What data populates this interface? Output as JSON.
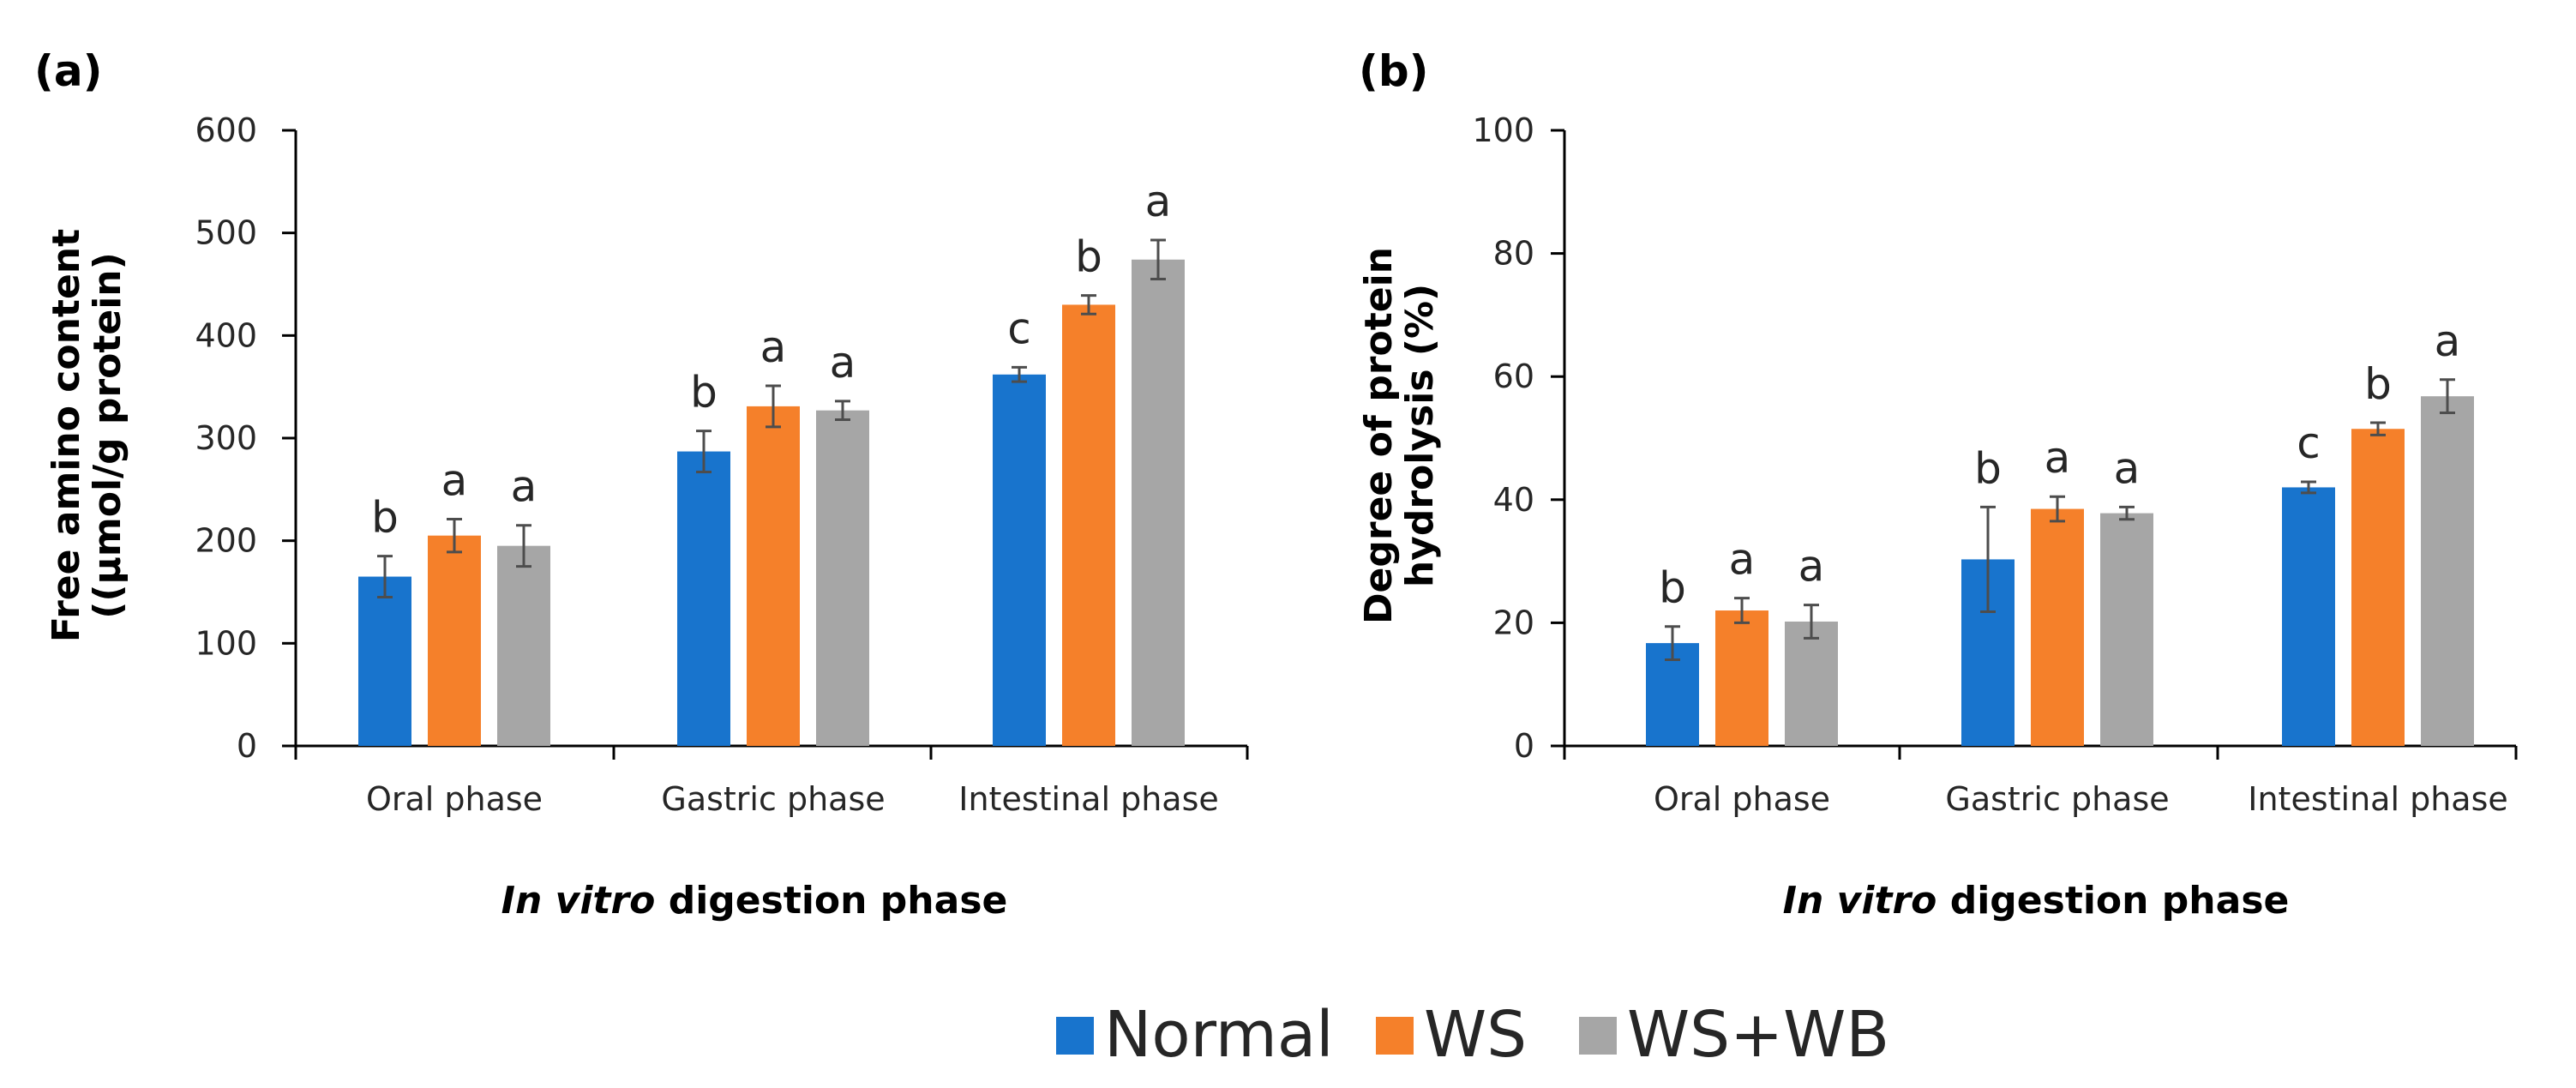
{
  "legend": {
    "items": [
      {
        "name": "Normal",
        "color": "#1874cd"
      },
      {
        "name": "WS",
        "color": "#f5802a"
      },
      {
        "name": "WS+WB",
        "color": "#a6a6a6"
      }
    ]
  },
  "chart_data": [
    {
      "type": "bar",
      "panel_label": "(a)",
      "title": "",
      "ylabel_lines": [
        "Free amino content",
        "((µmol/g protein)"
      ],
      "xlabel_italic": "In vitro",
      "xlabel_rest": " digestion phase",
      "categories": [
        "Oral phase",
        "Gastric phase",
        "Intestinal phase"
      ],
      "ylim": [
        0,
        600
      ],
      "yticks": [
        0,
        100,
        200,
        300,
        400,
        500,
        600
      ],
      "series": [
        {
          "name": "Normal",
          "color": "#1874cd",
          "values": [
            165,
            287,
            362
          ],
          "errors": [
            20,
            20,
            7
          ],
          "letters": [
            "b",
            "b",
            "c"
          ]
        },
        {
          "name": "WS",
          "color": "#f5802a",
          "values": [
            205,
            331,
            430
          ],
          "errors": [
            16,
            20,
            9
          ],
          "letters": [
            "a",
            "a",
            "b"
          ]
        },
        {
          "name": "WS+WB",
          "color": "#a6a6a6",
          "values": [
            195,
            327,
            474
          ],
          "errors": [
            20,
            9,
            19
          ],
          "letters": [
            "a",
            "a",
            "a"
          ]
        }
      ]
    },
    {
      "type": "bar",
      "panel_label": "(b)",
      "title": "",
      "ylabel_lines": [
        "Degree of protein",
        "hydrolysis (%)"
      ],
      "xlabel_italic": "In vitro",
      "xlabel_rest": " digestion phase",
      "categories": [
        "Oral phase",
        "Gastric phase",
        "Intestinal phase"
      ],
      "ylim": [
        0,
        100
      ],
      "yticks": [
        0,
        20,
        40,
        60,
        80,
        100
      ],
      "series": [
        {
          "name": "Normal",
          "color": "#1874cd",
          "values": [
            16.7,
            30.3,
            42.0
          ],
          "errors": [
            2.7,
            8.5,
            0.9
          ],
          "letters": [
            "b",
            "b",
            "c"
          ]
        },
        {
          "name": "WS",
          "color": "#f5802a",
          "values": [
            22.0,
            38.5,
            51.5
          ],
          "errors": [
            2.0,
            2.0,
            1.0
          ],
          "letters": [
            "a",
            "a",
            "b"
          ]
        },
        {
          "name": "WS+WB",
          "color": "#a6a6a6",
          "values": [
            20.2,
            37.8,
            56.8
          ],
          "errors": [
            2.7,
            1.0,
            2.7
          ],
          "letters": [
            "a",
            "a",
            "a"
          ]
        }
      ]
    }
  ]
}
